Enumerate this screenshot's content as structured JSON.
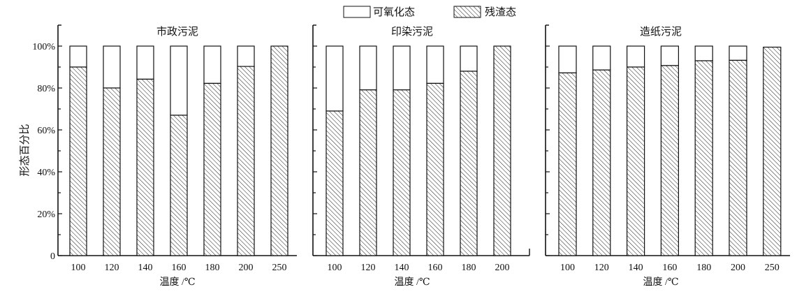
{
  "chart_data": [
    {
      "type": "bar",
      "stacked": true,
      "title": "市政污泥",
      "xlabel": "温度 /℃",
      "ylabel": "形态百分比",
      "categories": [
        "100",
        "120",
        "140",
        "160",
        "180",
        "200",
        "250"
      ],
      "series": [
        {
          "name": "残渣态",
          "values": [
            90,
            80,
            84.2,
            67,
            82.2,
            90.3,
            100
          ]
        },
        {
          "name": "可氧化态",
          "values": [
            10,
            20,
            15.8,
            33,
            17.8,
            9.7,
            0
          ]
        }
      ],
      "ylim": [
        0,
        110
      ],
      "yticks": [
        "0",
        "20%",
        "40%",
        "60%",
        "80%",
        "100%"
      ]
    },
    {
      "type": "bar",
      "stacked": true,
      "title": "印染污泥",
      "xlabel": "温度 /℃",
      "categories": [
        "100",
        "120",
        "140",
        "160",
        "180",
        "200"
      ],
      "series": [
        {
          "name": "残渣态",
          "values": [
            69,
            79.1,
            79.1,
            82.2,
            88,
            100
          ]
        },
        {
          "name": "可氧化态",
          "values": [
            31,
            20.9,
            20.9,
            17.8,
            12,
            0
          ]
        }
      ],
      "ylim": [
        0,
        110
      ]
    },
    {
      "type": "bar",
      "stacked": true,
      "title": "造纸污泥",
      "xlabel": "温度 /℃",
      "categories": [
        "100",
        "120",
        "140",
        "160",
        "180",
        "200",
        "250"
      ],
      "series": [
        {
          "name": "残渣态",
          "values": [
            87.2,
            88.6,
            90,
            90.7,
            93,
            93.2,
            99.5
          ]
        },
        {
          "name": "可氧化态",
          "values": [
            12.8,
            11.4,
            10,
            9.3,
            7,
            6.8,
            0.5
          ]
        }
      ],
      "ylim": [
        0,
        110
      ]
    }
  ],
  "legend": {
    "placement": "top-center",
    "items": [
      {
        "label": "可氧化态",
        "fill": "blank"
      },
      {
        "label": "残渣态",
        "fill": "hatched"
      }
    ]
  },
  "colors": {
    "line": "#111111",
    "background": "#ffffff"
  }
}
